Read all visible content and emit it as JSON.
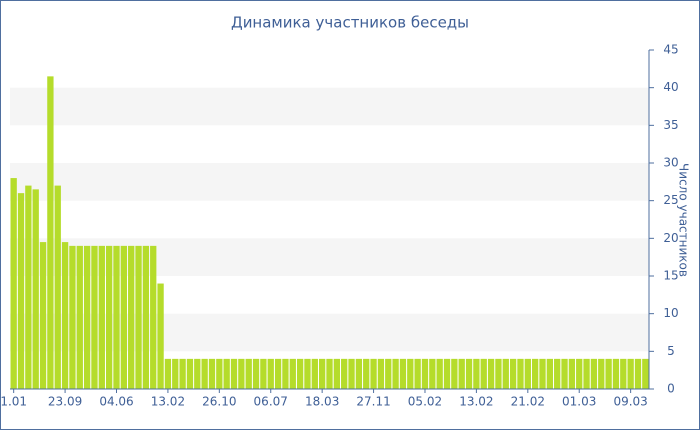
{
  "chart_data": {
    "type": "bar",
    "title": "Динамика участников беседы",
    "y_axis_label": "Число участников",
    "categories": [
      "1.01",
      null,
      null,
      null,
      null,
      null,
      null,
      "23.09",
      null,
      null,
      null,
      null,
      null,
      null,
      "04.06",
      null,
      null,
      null,
      null,
      null,
      null,
      "13.02",
      null,
      null,
      null,
      null,
      null,
      null,
      "26.10",
      null,
      null,
      null,
      null,
      null,
      null,
      "06.07",
      null,
      null,
      null,
      null,
      null,
      null,
      "18.03",
      null,
      null,
      null,
      null,
      null,
      null,
      "27.11",
      null,
      null,
      null,
      null,
      null,
      null,
      "05.02",
      null,
      null,
      null,
      null,
      null,
      null,
      "13.02",
      null,
      null,
      null,
      null,
      null,
      null,
      "21.02",
      null,
      null,
      null,
      null,
      null,
      null,
      "01.03",
      null,
      null,
      null,
      null,
      null,
      null,
      "09.03",
      null,
      null
    ],
    "values": [
      28,
      26,
      27,
      26.5,
      19.5,
      41.5,
      27,
      19.5,
      19,
      19,
      19,
      19,
      19,
      19,
      19,
      19,
      19,
      19,
      19,
      19,
      14,
      4,
      4,
      4,
      4,
      4,
      4,
      4,
      4,
      4,
      4,
      4,
      4,
      4,
      4,
      4,
      4,
      4,
      4,
      4,
      4,
      4,
      4,
      4,
      4,
      4,
      4,
      4,
      4,
      4,
      4,
      4,
      4,
      4,
      4,
      4,
      4,
      4,
      4,
      4,
      4,
      4,
      4,
      4,
      4,
      4,
      4,
      4,
      4,
      4,
      4,
      4,
      4,
      4,
      4,
      4,
      4,
      4,
      4,
      4,
      4,
      4,
      4,
      4,
      4,
      4,
      4
    ],
    "color": "#b5dc2b",
    "ylim": [
      0,
      45
    ],
    "yticks": [
      0,
      5,
      10,
      15,
      20,
      25,
      30,
      35,
      40,
      45
    ],
    "y_axis_side": "right",
    "grid_bands": true
  }
}
